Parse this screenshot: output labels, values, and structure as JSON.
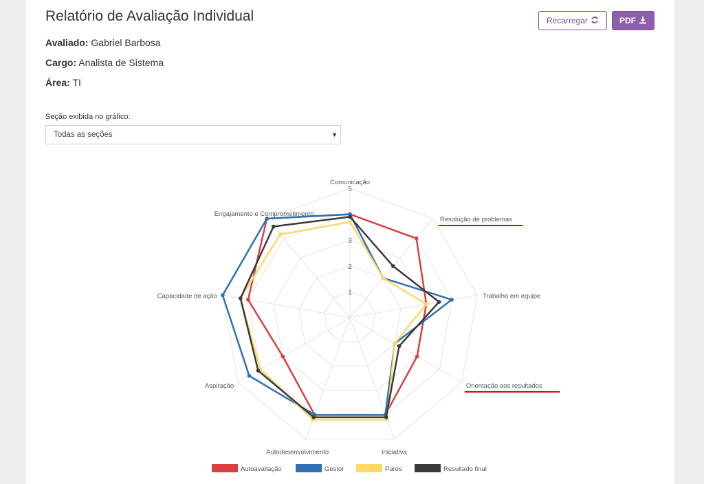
{
  "header": {
    "title": "Relatório de Avaliação Individual",
    "reload_label": "Recarregar",
    "pdf_label": "PDF"
  },
  "employee": {
    "evaluated_label": "Avaliado:",
    "evaluated_value": "Gabriel Barbosa",
    "role_label": "Cargo:",
    "role_value": "Analista de Sistema",
    "area_label": "Área:",
    "area_value": "TI"
  },
  "section_filter": {
    "label": "Seção exibida no gráfico:",
    "selected": "Todas as seções"
  },
  "colors": {
    "accent": "#8e5ea8",
    "annotation": "#e00000"
  },
  "chart_data": {
    "type": "radar",
    "categories": [
      "Comunicação",
      "Resolução de problemas",
      "Trabalho em equipe",
      "Orientação aos resultados",
      "Iniciativa",
      "Autodesenvolvimento",
      "Aspiração",
      "Capacidade de ação",
      "Engajamento e Comprometimento"
    ],
    "ylim": [
      0,
      5
    ],
    "ticks": [
      "1",
      "2",
      "3",
      "5"
    ],
    "grid": true,
    "legend_position": "bottom",
    "series": [
      {
        "name": "Autoavaliação",
        "color": "#d94040",
        "values": [
          4,
          4,
          3,
          3,
          4,
          4,
          3,
          4,
          5
        ]
      },
      {
        "name": "Gestor",
        "color": "#2f6fb3",
        "values": [
          4,
          2,
          4,
          2,
          4,
          4,
          4.5,
          5,
          5
        ]
      },
      {
        "name": "Pares",
        "color": "#ffd966",
        "values": [
          3.7,
          2,
          3,
          2,
          4.2,
          4.2,
          4,
          4.3,
          4.2
        ]
      },
      {
        "name": "Resultado final",
        "color": "#3a3a3a",
        "values": [
          3.9,
          2.6,
          3.5,
          2.2,
          4.1,
          4.1,
          4.1,
          4.3,
          4.6
        ]
      }
    ],
    "highlighted_labels": [
      "Resolução de problemas",
      "Orientação aos resultados"
    ]
  }
}
